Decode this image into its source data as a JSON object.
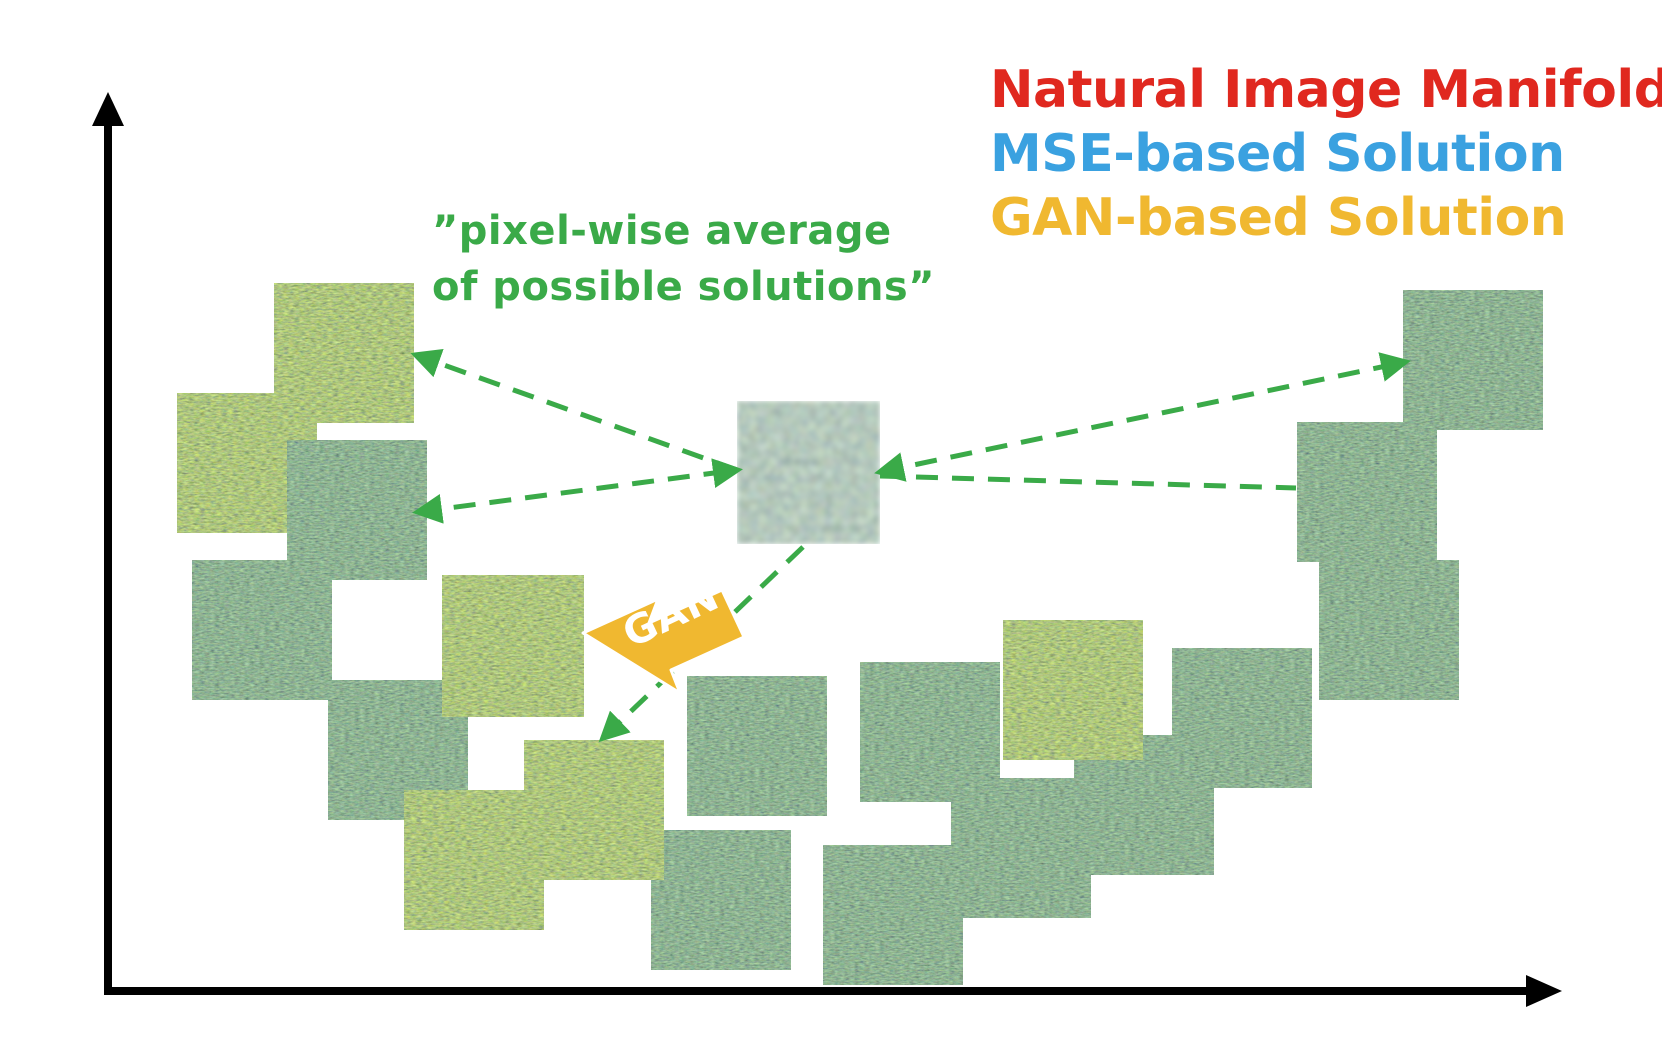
{
  "colors": {
    "manifold": "#e0281f",
    "mse": "#3aa1e0",
    "gan": "#f0b830",
    "annotation": "#3aaa48",
    "axis": "#000000"
  },
  "legend": {
    "manifold_label": "Natural Image Manifold",
    "mse_label": "MSE-based Solution",
    "gan_label": "GAN-based Solution"
  },
  "annotation": {
    "line1": "”pixel-wise average",
    "line2": "of possible solutions”"
  },
  "gan_arrow_label": "GAN",
  "icons": {
    "manifold_patch": "textured-image-patch",
    "mse_patch": "blurred-image-patch",
    "gan_patch": "sharp-image-patch"
  }
}
